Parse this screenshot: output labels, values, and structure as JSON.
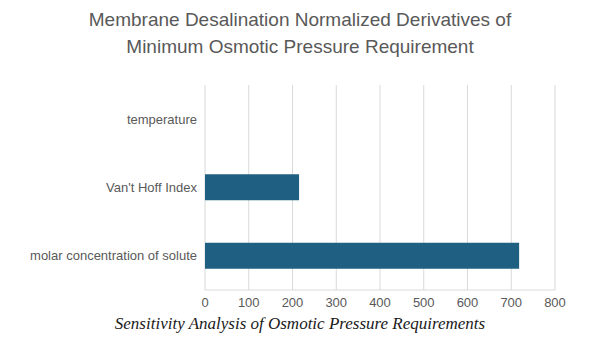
{
  "chart_data": {
    "type": "bar",
    "title": "Membrane Desalination Normalized Derivatives of\nMinimum Osmotic Pressure Requirement",
    "caption": "Sensitivity Analysis of Osmotic Pressure Requirements",
    "orientation": "horizontal",
    "categories": [
      "temperature",
      "Van't Hoff Index",
      "molar concentration of solute"
    ],
    "values": [
      0,
      215,
      718
    ],
    "color": "#1f5f82",
    "xlim": [
      0,
      800
    ],
    "xticks": [
      0,
      100,
      200,
      300,
      400,
      500,
      600,
      700,
      800
    ],
    "grid": true
  }
}
